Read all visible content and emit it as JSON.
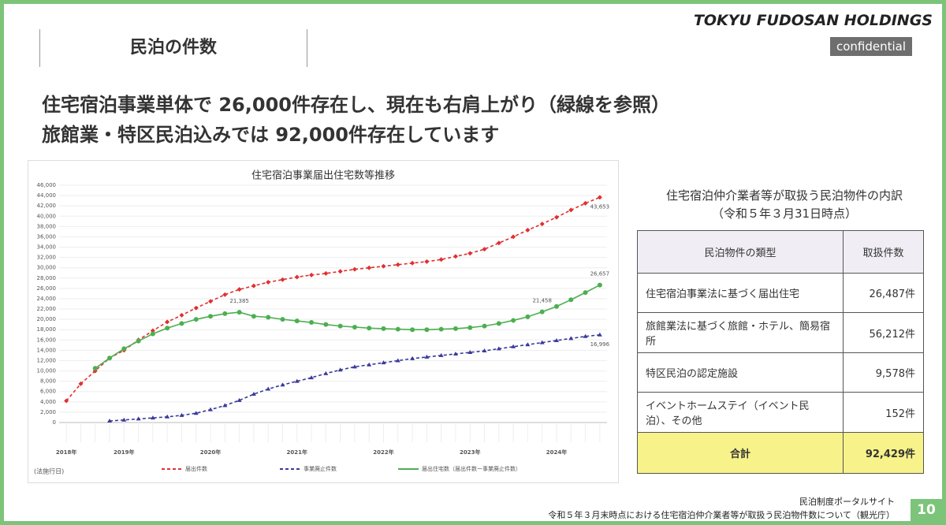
{
  "page": {
    "section_title": "民泊の件数",
    "logo": "TOKYU FUDOSAN HOLDINGS",
    "badge": "confidential",
    "headline": [
      "住宅宿泊事業単体で 26,000件存在し、現在も右肩上がり（緑線を参照）",
      "旅館業・特区民泊込みでは 92,000件存在しています"
    ],
    "source": [
      "民泊制度ポータルサイト",
      "令和５年３月末時点における住宅宿泊仲介業者等が取扱う民泊物件数について（観光庁）"
    ],
    "page_number": "10"
  },
  "chart_data": {
    "type": "line",
    "title": "住宅宿泊事業届出住宅数等推移",
    "footnote": "(法施行日)",
    "categories": [
      null,
      null,
      null,
      null,
      null,
      null,
      null,
      null,
      null,
      null,
      null,
      null,
      null,
      null,
      null,
      null,
      null,
      null,
      null,
      null,
      null,
      null,
      null,
      null,
      null,
      null,
      null,
      null,
      null,
      null,
      null,
      null,
      null,
      null,
      null,
      null,
      null,
      null
    ],
    "year_labels": [
      {
        "index": 0,
        "label": "2018年"
      },
      {
        "index": 4,
        "label": "2019年"
      },
      {
        "index": 10,
        "label": "2020年"
      },
      {
        "index": 16,
        "label": "2021年"
      },
      {
        "index": 22,
        "label": "2022年"
      },
      {
        "index": 28,
        "label": "2023年"
      },
      {
        "index": 34,
        "label": "2024年"
      }
    ],
    "series": [
      {
        "name": "届出件数",
        "color": "#e03030",
        "dash": "4 3",
        "marker": "diamond",
        "values": [
          4200,
          7500,
          10000,
          12500,
          14000,
          16000,
          17800,
          19500,
          20800,
          22200,
          23500,
          24800,
          25800,
          26500,
          27200,
          27700,
          28200,
          28600,
          28900,
          29300,
          29700,
          30000,
          30300,
          30600,
          30900,
          31200,
          31600,
          32200,
          32800,
          33600,
          34800,
          36000,
          37300,
          38500,
          39800,
          41200,
          42500,
          43653
        ]
      },
      {
        "name": "事業廃止件数",
        "color": "#3a3a9a",
        "dash": "4 3",
        "marker": "triangle",
        "values": [
          null,
          null,
          null,
          300,
          500,
          700,
          900,
          1100,
          1400,
          1800,
          2500,
          3300,
          4300,
          5500,
          6500,
          7300,
          8000,
          8700,
          9500,
          10200,
          10800,
          11200,
          11600,
          12000,
          12400,
          12700,
          13000,
          13300,
          13600,
          13900,
          14300,
          14700,
          15100,
          15500,
          15900,
          16300,
          16700,
          16996
        ]
      },
      {
        "name": "届出住宅数（届出件数ー事業廃止件数）",
        "color": "#4caf50",
        "dash": "",
        "marker": "circle",
        "values": [
          null,
          null,
          10500,
          12500,
          14300,
          15800,
          17200,
          18300,
          19200,
          20000,
          20600,
          21100,
          21385,
          20600,
          20400,
          20000,
          19700,
          19400,
          19000,
          18700,
          18500,
          18300,
          18200,
          18100,
          18000,
          18000,
          18100,
          18200,
          18400,
          18700,
          19200,
          19800,
          20500,
          21458,
          22500,
          23800,
          25200,
          26657
        ]
      }
    ],
    "annotations": [
      {
        "series": 0,
        "index": 37,
        "label": "43,653"
      },
      {
        "series": 2,
        "index": 37,
        "label": "26,657"
      },
      {
        "series": 2,
        "index": 12,
        "label": "21,385"
      },
      {
        "series": 2,
        "index": 33,
        "label": "21,458"
      },
      {
        "series": 1,
        "index": 37,
        "label": "16,996"
      }
    ],
    "ylim": [
      0,
      46000
    ],
    "yticks": [
      0,
      {
        "value": 2000,
        "label": "2,000"
      },
      {
        "value": 4000,
        "label": "4,000"
      },
      {
        "value": 6000,
        "label": "6,000"
      },
      {
        "value": 8000,
        "label": "8,000"
      },
      {
        "value": 10000,
        "label": "10,000"
      },
      {
        "value": 12000,
        "label": "12,000"
      },
      {
        "value": 14000,
        "label": "14,000"
      },
      {
        "value": 16000,
        "label": "16,000"
      },
      {
        "value": 18000,
        "label": "18,000"
      },
      {
        "value": 20000,
        "label": "20,000"
      },
      {
        "value": 22000,
        "label": "22,000"
      },
      {
        "value": 24000,
        "label": "24,000"
      },
      {
        "value": 26000,
        "label": "26,000"
      },
      {
        "value": 28000,
        "label": "28,000"
      },
      {
        "value": 30000,
        "label": "30,000"
      },
      {
        "value": 32000,
        "label": "32,000"
      },
      {
        "value": 34000,
        "label": "34,000"
      },
      {
        "value": 36000,
        "label": "36,000"
      },
      {
        "value": 38000,
        "label": "38,000"
      },
      {
        "value": 40000,
        "label": "40,000"
      },
      {
        "value": 42000,
        "label": "42,000"
      },
      {
        "value": 44000,
        "label": "44,000"
      },
      {
        "value": 46000,
        "label": "46,000"
      }
    ],
    "grid": true
  },
  "table": {
    "caption": [
      "住宅宿泊仲介業者等が取扱う民泊物件の内訳",
      "（令和５年３月31日時点）"
    ],
    "header": [
      "民泊物件の類型",
      "取扱件数"
    ],
    "rows": [
      [
        "住宅宿泊事業法に基づく届出住宅",
        "26,487件"
      ],
      [
        "旅館業法に基づく旅館・ホテル、簡易宿所",
        "56,212件"
      ],
      [
        "特区民泊の認定施設",
        "9,578件"
      ],
      [
        "イベントホームステイ（イベント民泊）、その他",
        "152件"
      ]
    ],
    "total": [
      "合計",
      "92,429件"
    ]
  }
}
